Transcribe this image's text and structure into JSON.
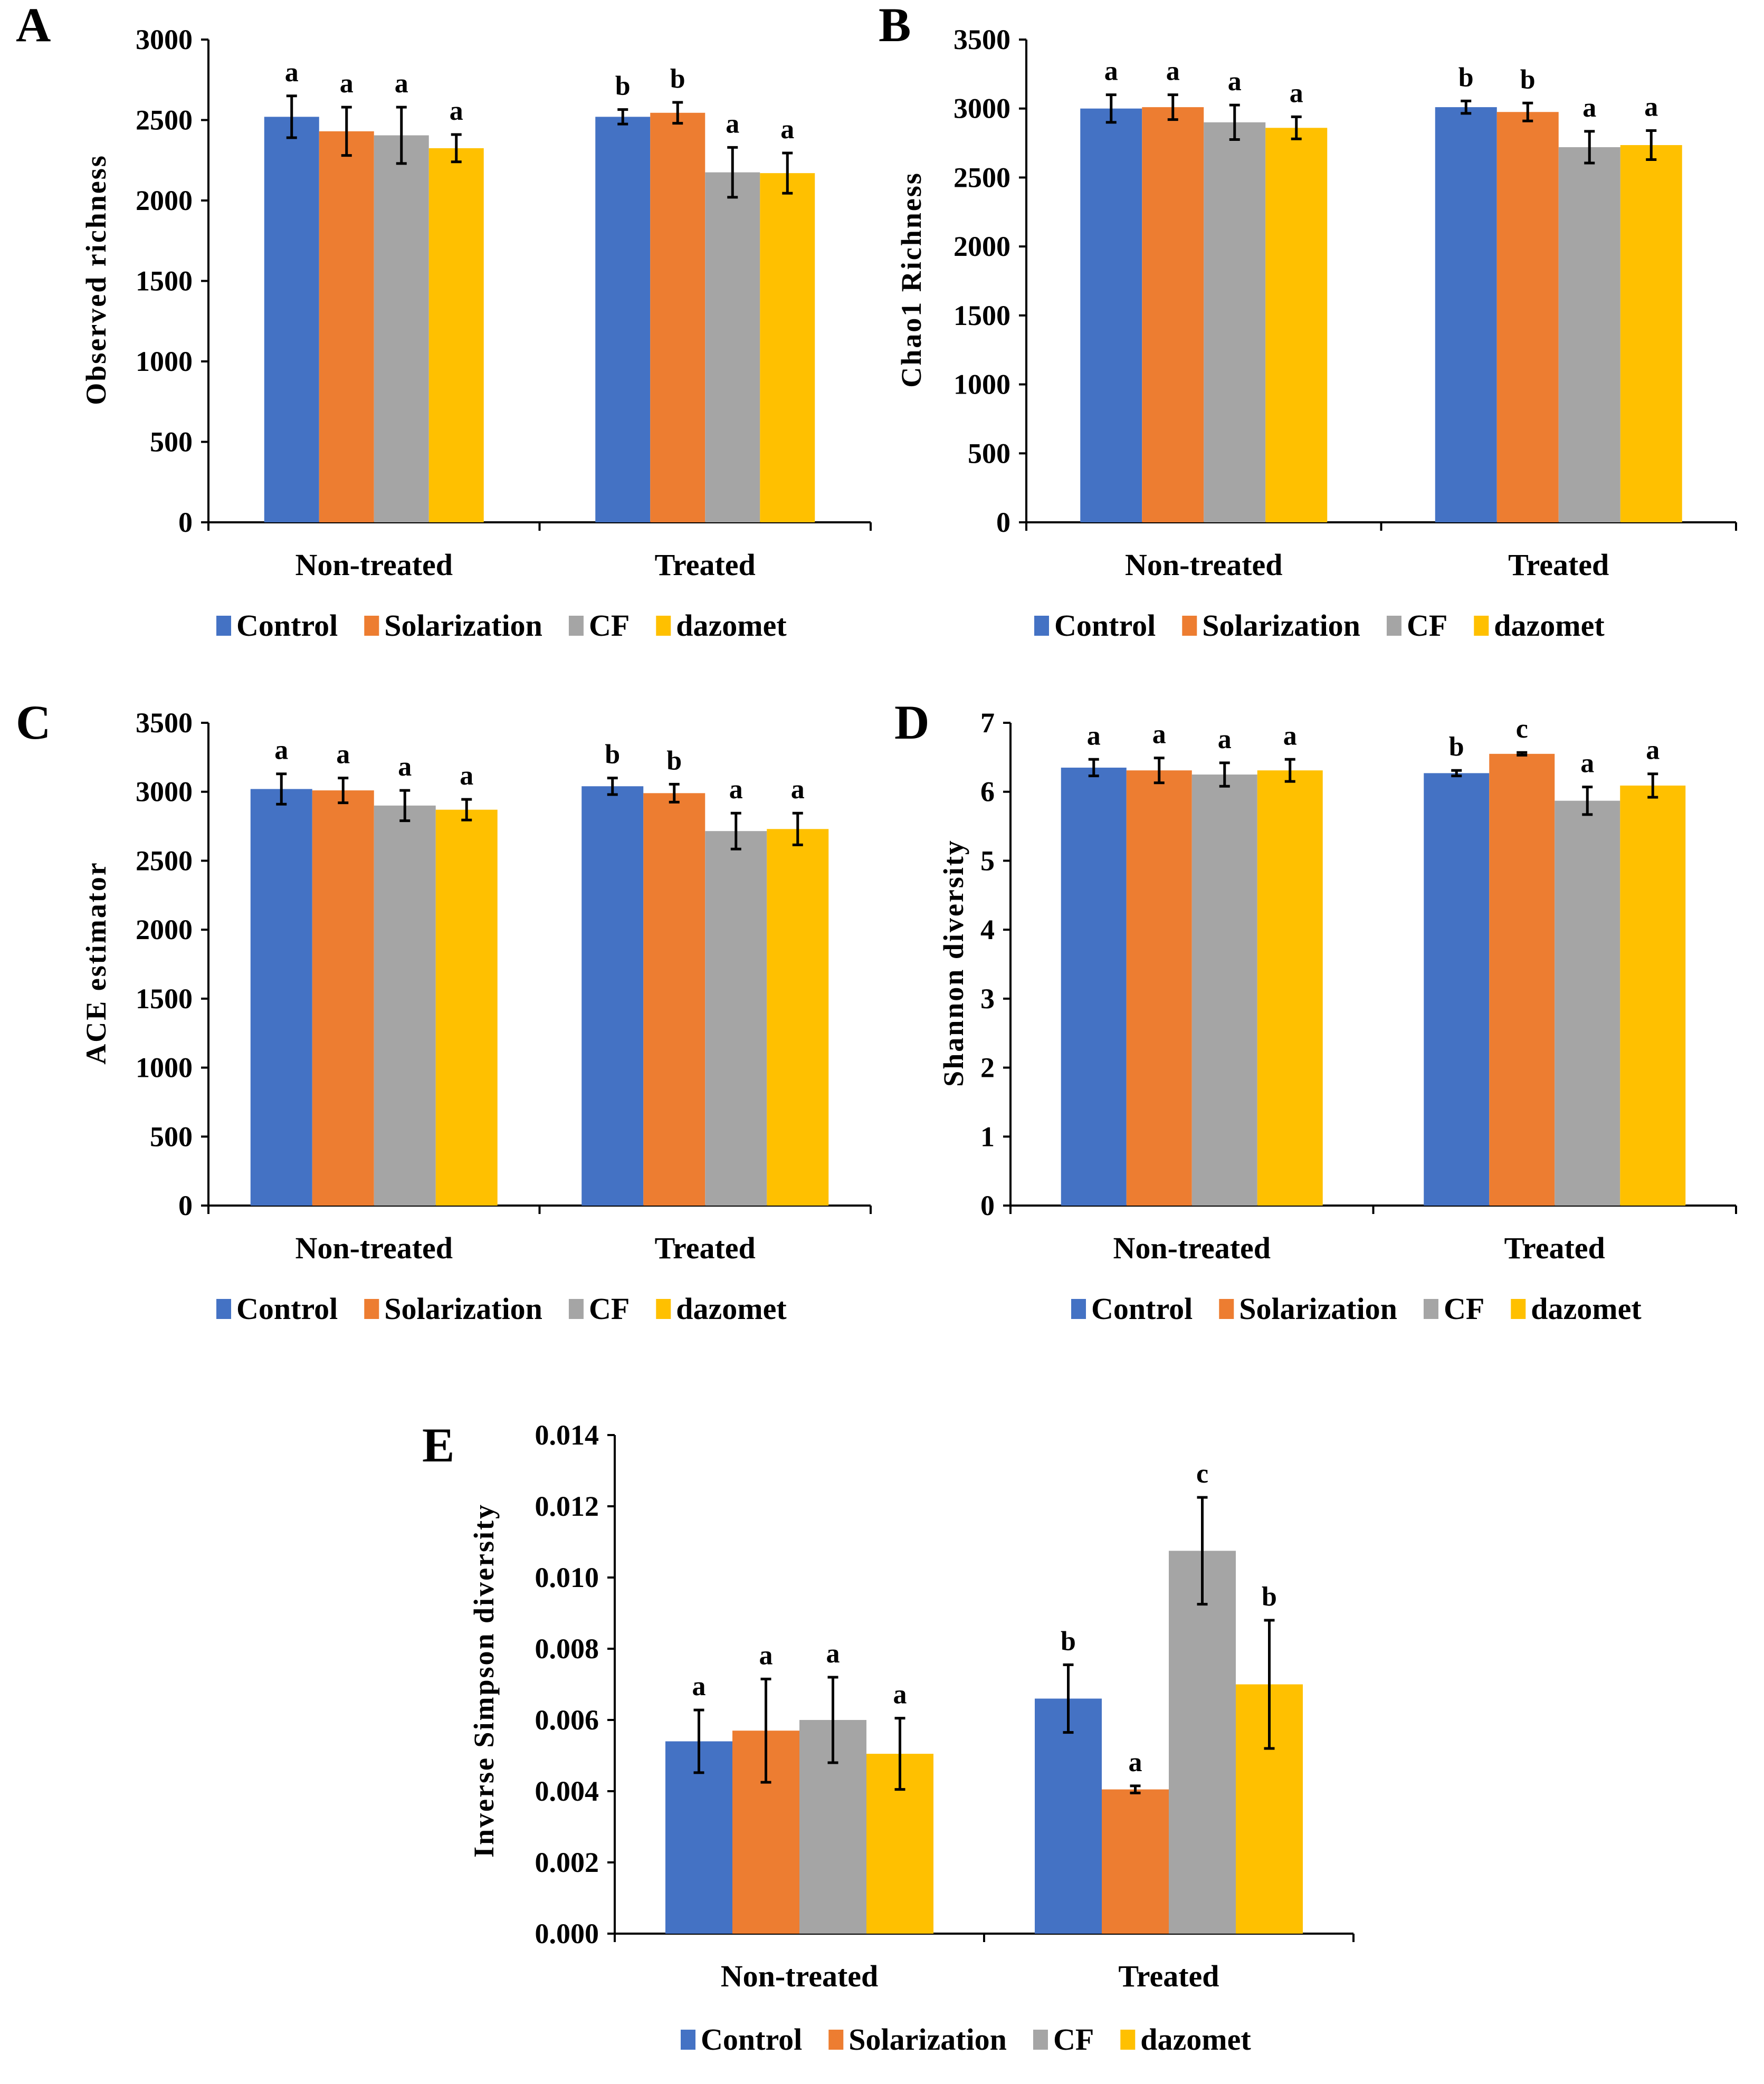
{
  "figure": {
    "background": "#ffffff"
  },
  "colors": {
    "Control": "#4472C4",
    "Solarization": "#ED7D31",
    "CF": "#A5A5A5",
    "dazomet": "#FFC000"
  },
  "chart_data": [
    {
      "panel": "A",
      "type": "bar",
      "ylabel": "Observed richness",
      "ylim": [
        0,
        3000
      ],
      "yticks": [
        "0",
        "500",
        "1000",
        "1500",
        "2000",
        "2500",
        "3000"
      ],
      "categories": [
        "Non-treated",
        "Treated"
      ],
      "legend": [
        "Control",
        "Solarization",
        "CF",
        "dazomet"
      ],
      "series": [
        {
          "name": "Control",
          "values": [
            2520,
            2520
          ],
          "errors": [
            130,
            45
          ],
          "letters": [
            "a",
            "b"
          ]
        },
        {
          "name": "Solarization",
          "values": [
            2430,
            2545
          ],
          "errors": [
            150,
            65
          ],
          "letters": [
            "a",
            "b"
          ]
        },
        {
          "name": "CF",
          "values": [
            2405,
            2175
          ],
          "errors": [
            175,
            155
          ],
          "letters": [
            "a",
            "a"
          ]
        },
        {
          "name": "dazomet",
          "values": [
            2325,
            2170
          ],
          "errors": [
            85,
            125
          ],
          "letters": [
            "a",
            "a"
          ]
        }
      ]
    },
    {
      "panel": "B",
      "type": "bar",
      "ylabel": "Chao1 Richness",
      "ylim": [
        0,
        3500
      ],
      "yticks": [
        "0",
        "500",
        "1000",
        "1500",
        "2000",
        "2500",
        "3000",
        "3500"
      ],
      "categories": [
        "Non-treated",
        "Treated"
      ],
      "legend": [
        "Control",
        "Solarization",
        "CF",
        "dazomet"
      ],
      "series": [
        {
          "name": "Control",
          "values": [
            3000,
            3010
          ],
          "errors": [
            100,
            45
          ],
          "letters": [
            "a",
            "b"
          ]
        },
        {
          "name": "Solarization",
          "values": [
            3010,
            2975
          ],
          "errors": [
            90,
            65
          ],
          "letters": [
            "a",
            "b"
          ]
        },
        {
          "name": "CF",
          "values": [
            2900,
            2720
          ],
          "errors": [
            125,
            115
          ],
          "letters": [
            "a",
            "a"
          ]
        },
        {
          "name": "dazomet",
          "values": [
            2860,
            2735
          ],
          "errors": [
            80,
            105
          ],
          "letters": [
            "a",
            "a"
          ]
        }
      ]
    },
    {
      "panel": "C",
      "type": "bar",
      "ylabel": "ACE estimator",
      "ylim": [
        0,
        3500
      ],
      "yticks": [
        "0",
        "500",
        "1000",
        "1500",
        "2000",
        "2500",
        "3000",
        "3500"
      ],
      "categories": [
        "Non-treated",
        "Treated"
      ],
      "legend": [
        "Control",
        "Solarization",
        "CF",
        "dazomet"
      ],
      "series": [
        {
          "name": "Control",
          "values": [
            3020,
            3040
          ],
          "errors": [
            110,
            60
          ],
          "letters": [
            "a",
            "b"
          ]
        },
        {
          "name": "Solarization",
          "values": [
            3010,
            2990
          ],
          "errors": [
            90,
            65
          ],
          "letters": [
            "a",
            "b"
          ]
        },
        {
          "name": "CF",
          "values": [
            2900,
            2715
          ],
          "errors": [
            110,
            130
          ],
          "letters": [
            "a",
            "a"
          ]
        },
        {
          "name": "dazomet",
          "values": [
            2870,
            2730
          ],
          "errors": [
            75,
            115
          ],
          "letters": [
            "a",
            "a"
          ]
        }
      ]
    },
    {
      "panel": "D",
      "type": "bar",
      "ylabel": "Shannon diversity",
      "ylim": [
        0,
        7
      ],
      "yticks": [
        "0",
        "1",
        "2",
        "3",
        "4",
        "5",
        "6",
        "7"
      ],
      "categories": [
        "Non-treated",
        "Treated"
      ],
      "legend": [
        "Control",
        "Solarization",
        "CF",
        "dazomet"
      ],
      "series": [
        {
          "name": "Control",
          "values": [
            6.35,
            6.27
          ],
          "errors": [
            0.12,
            0.04
          ],
          "letters": [
            "a",
            "b"
          ]
        },
        {
          "name": "Solarization",
          "values": [
            6.31,
            6.55
          ],
          "errors": [
            0.18,
            0.02
          ],
          "letters": [
            "a",
            "c"
          ]
        },
        {
          "name": "CF",
          "values": [
            6.25,
            5.87
          ],
          "errors": [
            0.17,
            0.2
          ],
          "letters": [
            "a",
            "a"
          ]
        },
        {
          "name": "dazomet",
          "values": [
            6.31,
            6.09
          ],
          "errors": [
            0.16,
            0.17
          ],
          "letters": [
            "a",
            "a"
          ]
        }
      ]
    },
    {
      "panel": "E",
      "type": "bar",
      "ylabel": "Inverse Simpson diversity",
      "ylim": [
        0,
        0.014
      ],
      "yticks": [
        "0.000",
        "0.002",
        "0.004",
        "0.006",
        "0.008",
        "0.010",
        "0.012",
        "0.014"
      ],
      "categories": [
        "Non-treated",
        "Treated"
      ],
      "legend": [
        "Control",
        "Solarization",
        "CF",
        "dazomet"
      ],
      "series": [
        {
          "name": "Control",
          "values": [
            0.0054,
            0.0066
          ],
          "errors": [
            0.00088,
            0.00095
          ],
          "letters": [
            "a",
            "b"
          ]
        },
        {
          "name": "Solarization",
          "values": [
            0.0057,
            0.00405
          ],
          "errors": [
            0.00145,
            0.0001
          ],
          "letters": [
            "a",
            "a"
          ]
        },
        {
          "name": "CF",
          "values": [
            0.006,
            0.01075
          ],
          "errors": [
            0.0012,
            0.0015
          ],
          "letters": [
            "a",
            "c"
          ]
        },
        {
          "name": "dazomet",
          "values": [
            0.00505,
            0.007
          ],
          "errors": [
            0.001,
            0.0018
          ],
          "letters": [
            "a",
            "b"
          ]
        }
      ]
    }
  ]
}
